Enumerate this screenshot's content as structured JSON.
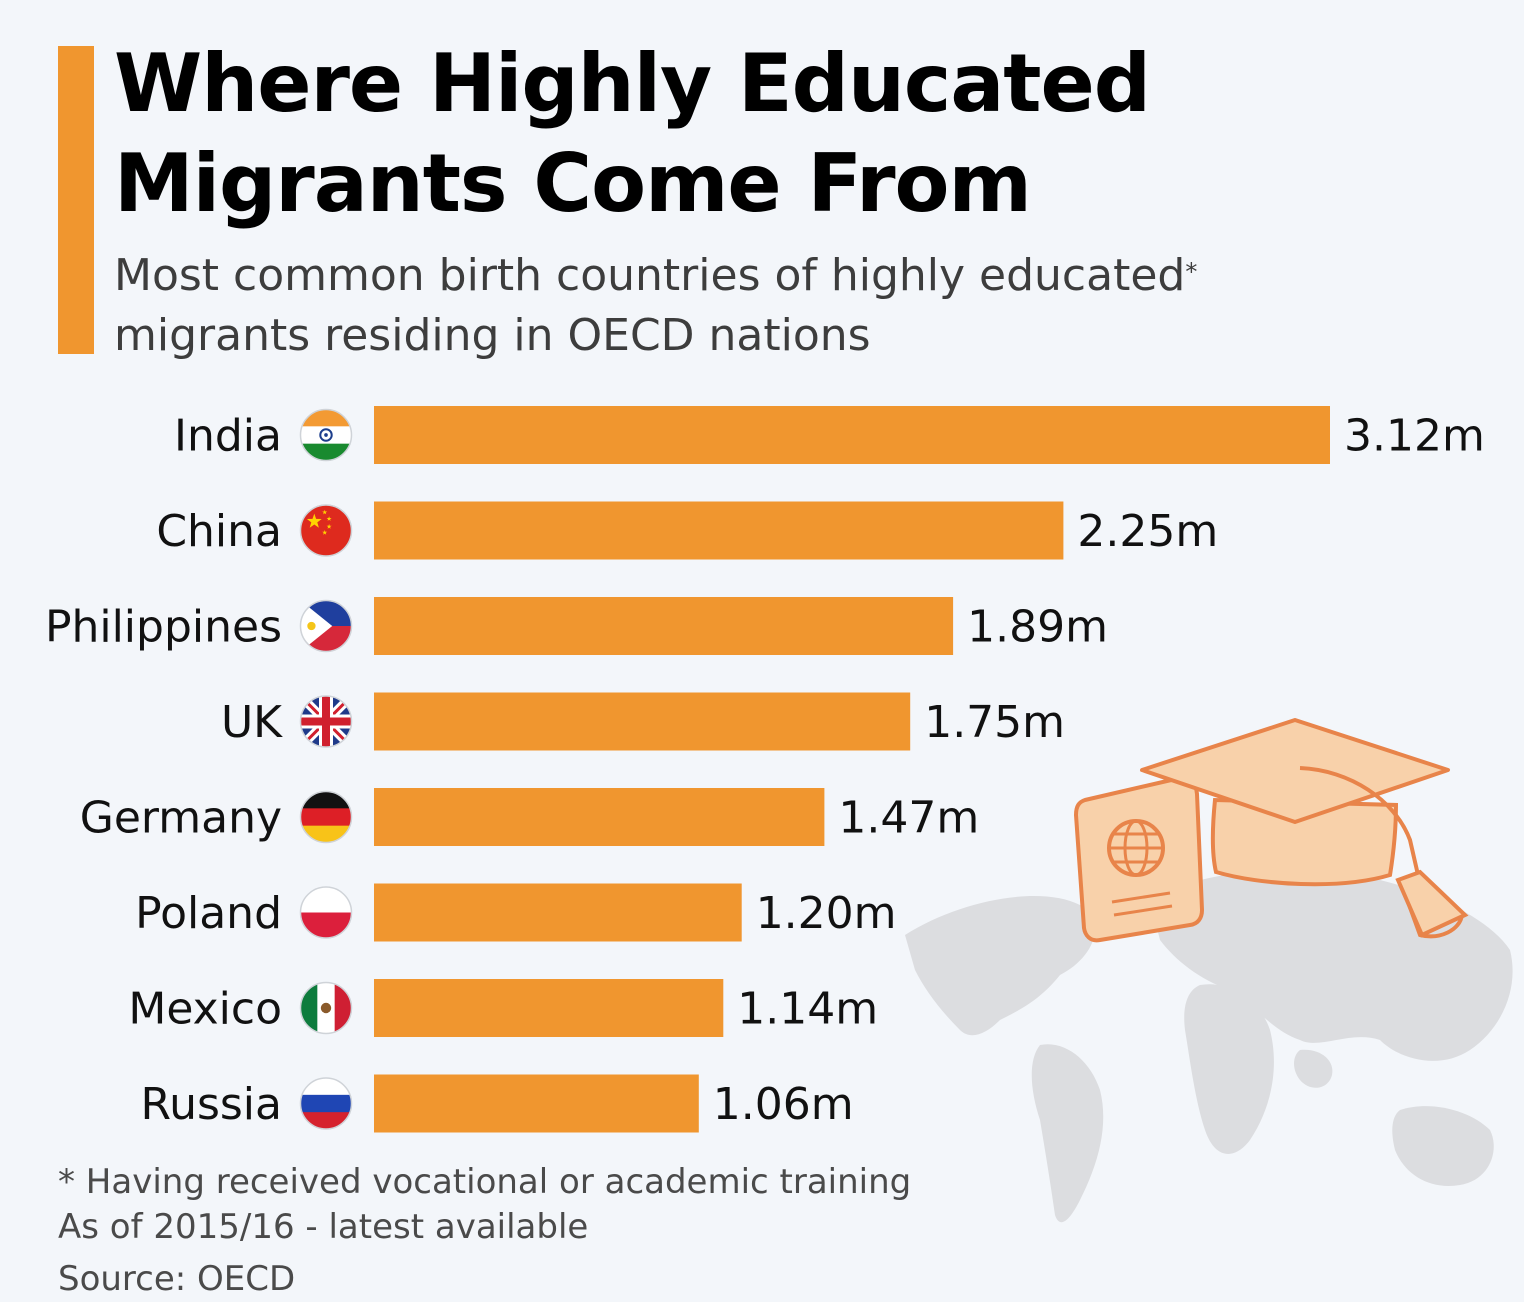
{
  "header": {
    "title_line1": "Where Highly Educated",
    "title_line2": "Migrants Come From",
    "subtitle_line1": "Most common birth countries of highly educated",
    "subtitle_asterisk": "*",
    "subtitle_line2": "migrants residing in OECD nations"
  },
  "footer": {
    "footnote": "* Having received vocational or academic training",
    "as_of": "As of 2015/16 - latest available",
    "source": "Source: OECD"
  },
  "colors": {
    "bar": "#f0962f",
    "accent": "#f0962f",
    "background": "#f3f6fa"
  },
  "chart_data": {
    "type": "bar",
    "orientation": "horizontal",
    "categories": [
      "India",
      "China",
      "Philippines",
      "UK",
      "Germany",
      "Poland",
      "Mexico",
      "Russia"
    ],
    "values": [
      3.12,
      2.25,
      1.89,
      1.75,
      1.47,
      1.2,
      1.14,
      1.06
    ],
    "value_labels": [
      "3.12m",
      "2.25m",
      "1.89m",
      "1.75m",
      "1.47m",
      "1.20m",
      "1.14m",
      "1.06m"
    ],
    "flag_icons": [
      "india-flag-icon",
      "china-flag-icon",
      "philippines-flag-icon",
      "uk-flag-icon",
      "germany-flag-icon",
      "poland-flag-icon",
      "mexico-flag-icon",
      "russia-flag-icon"
    ],
    "xlim": [
      0,
      3.12
    ],
    "grid": false,
    "legend": "none"
  }
}
